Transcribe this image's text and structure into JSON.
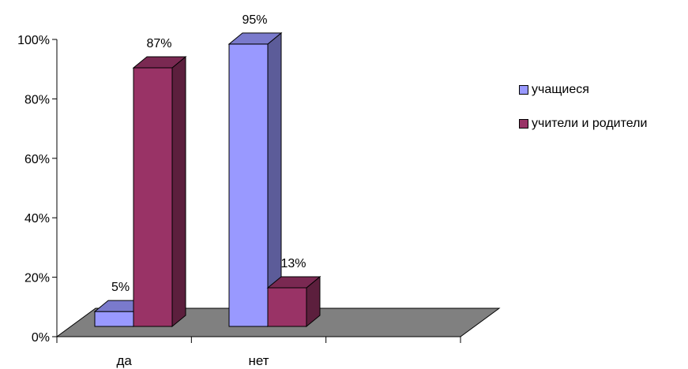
{
  "chart_data": {
    "type": "bar",
    "categories": [
      "да",
      "нет"
    ],
    "series": [
      {
        "name": "учащиеся",
        "values": [
          5,
          95
        ],
        "labels": [
          "5%",
          "95%"
        ],
        "color": "#9999ff",
        "side_color": "#5c5c99",
        "top_color": "#7a7acc"
      },
      {
        "name": "учители и родители",
        "values": [
          87,
          13
        ],
        "labels": [
          "87%",
          "13%"
        ],
        "color": "#993366",
        "side_color": "#5c1f3d",
        "top_color": "#7a2952"
      }
    ],
    "y_ticks": [
      "0%",
      "20%",
      "40%",
      "60%",
      "80%",
      "100%"
    ],
    "ylim": [
      0,
      100
    ],
    "floor_color": "#808080",
    "legend_position": "right",
    "grid": false
  },
  "legend": {
    "items": [
      {
        "label": "учащиеся",
        "color": "#9999ff"
      },
      {
        "label": "учители и родители",
        "color": "#993366"
      }
    ]
  }
}
